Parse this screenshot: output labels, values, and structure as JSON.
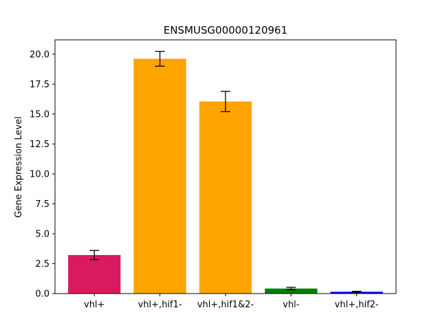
{
  "chart_data": {
    "type": "bar",
    "title": "ENSMUSG00000120961",
    "xlabel": "",
    "ylabel": "Gene Expression Level",
    "categories": [
      "vhl+",
      "vhl+,hif1-",
      "vhl+,hif1&2-",
      "vhl-",
      "vhl+,hif2-"
    ],
    "values": [
      3.22,
      19.62,
      16.05,
      0.42,
      0.15
    ],
    "errors": [
      0.38,
      0.62,
      0.85,
      0.1,
      0.04
    ],
    "colors": [
      "#d81b60",
      "#ffa500",
      "#ffa500",
      "#008000",
      "#0000ff"
    ],
    "ylim": [
      0,
      21.2
    ],
    "yticks": [
      "0.0",
      "2.5",
      "5.0",
      "7.5",
      "10.0",
      "12.5",
      "15.0",
      "17.5",
      "20.0"
    ],
    "grid": false
  }
}
